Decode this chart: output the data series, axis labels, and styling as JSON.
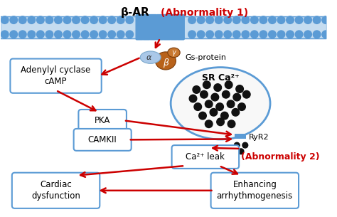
{
  "bg_color": "#ffffff",
  "membrane_color": "#5b9bd5",
  "box_edge_color": "#5b9bd5",
  "box_bg_color": "#ffffff",
  "arrow_color": "#cc0000",
  "text_normal": "#000000",
  "text_red": "#cc0000",
  "dot_color": "#111111",
  "gs_alpha_color": "#aac8e8",
  "gs_beta_color": "#b8621a",
  "gs_gamma_color": "#c87830",
  "sr_fill": "#f8f8f8",
  "sr_edge": "#5b9bd5",
  "ryr_color": "#5b9bd5",
  "bar_label": "β-AR",
  "abnormality1": "(Abnormality 1)",
  "abnormality2": "(Abnormality 2)",
  "gs_label": "Gs-protein",
  "alpha_label": "α",
  "beta_label": "β",
  "gamma_label": "γ",
  "sr_label": "SR Ca²⁺",
  "ryr2_label": "RyR2",
  "box1_label": "Adenylyl cyclase\ncAMP",
  "box2_label": "PKA",
  "box3_label": "CAMKII",
  "box4_label": "Ca²⁺ leak",
  "box5_label": "Cardiac\ndysfunction",
  "box6_label": "Enhancing\narrhythmogenesis"
}
